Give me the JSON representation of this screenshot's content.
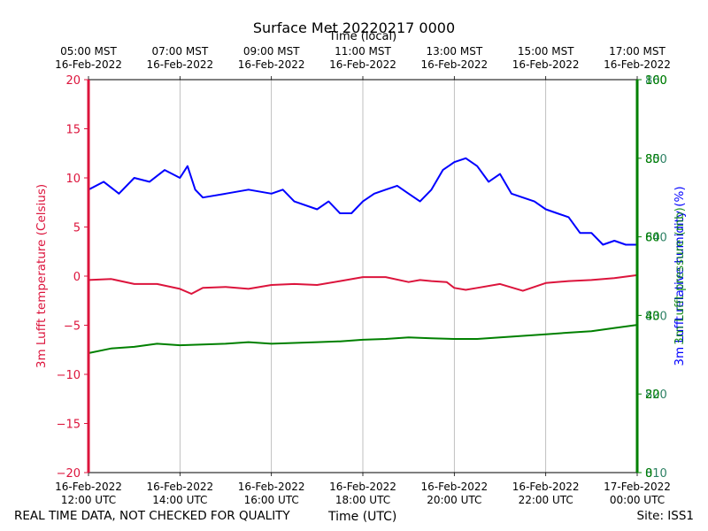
{
  "title": "Surface Met 20220217 0000",
  "footer": {
    "left": "REAL TIME DATA, NOT CHECKED FOR QUALITY",
    "right": "Site: ISS1"
  },
  "chart_data": {
    "type": "line",
    "title": "Surface Met 20220217 0000",
    "xlabel": "Time (UTC)",
    "top_xlabel": "Time (local)",
    "grid": "vertical",
    "x_range": [
      "2022-02-16 12:00 UTC",
      "2022-02-17 00:00 UTC"
    ],
    "bottom_ticks": [
      {
        "date": "16-Feb-2022",
        "time": "12:00 UTC"
      },
      {
        "date": "16-Feb-2022",
        "time": "14:00 UTC"
      },
      {
        "date": "16-Feb-2022",
        "time": "16:00 UTC"
      },
      {
        "date": "16-Feb-2022",
        "time": "18:00 UTC"
      },
      {
        "date": "16-Feb-2022",
        "time": "20:00 UTC"
      },
      {
        "date": "16-Feb-2022",
        "time": "22:00 UTC"
      },
      {
        "date": "17-Feb-2022",
        "time": "00:00 UTC"
      }
    ],
    "top_ticks": [
      {
        "time": "05:00 MST",
        "date": "16-Feb-2022"
      },
      {
        "time": "07:00 MST",
        "date": "16-Feb-2022"
      },
      {
        "time": "09:00 MST",
        "date": "16-Feb-2022"
      },
      {
        "time": "11:00 MST",
        "date": "16-Feb-2022"
      },
      {
        "time": "13:00 MST",
        "date": "16-Feb-2022"
      },
      {
        "time": "15:00 MST",
        "date": "16-Feb-2022"
      },
      {
        "time": "17:00 MST",
        "date": "16-Feb-2022"
      }
    ],
    "y_left": {
      "label": "3m Lufft temperature (Celsius)",
      "color": "#dc143c",
      "ylim": [
        -20,
        20
      ],
      "ticks": [
        "−20",
        "−15",
        "−10",
        "−5",
        "0",
        "5",
        "10",
        "15",
        "20"
      ]
    },
    "y_right": {
      "labels": [
        "3m Lufft relative humidity (%)",
        "3m Lufft pressure (mb)"
      ],
      "color_humidity": "#0000ff",
      "color_pressure": "#008000",
      "ylim_humidity": [
        0,
        100
      ],
      "ylim_pressure": [
        810,
        860
      ],
      "ticks": [
        {
          "a": "0",
          "b": "810"
        },
        {
          "a": "20",
          "b": "820"
        },
        {
          "a": "40",
          "b": "830"
        },
        {
          "a": "60",
          "b": "840"
        },
        {
          "a": "80",
          "b": "850"
        },
        {
          "a": "100",
          "b": "860"
        }
      ]
    },
    "series": [
      {
        "name": "3m Lufft temperature (Celsius)",
        "color": "#dc143c",
        "axis": "left",
        "x": [
          "12:00",
          "12:30",
          "13:00",
          "13:30",
          "14:00",
          "14:15",
          "14:30",
          "15:00",
          "15:30",
          "16:00",
          "16:30",
          "17:00",
          "17:30",
          "18:00",
          "18:30",
          "19:00",
          "19:15",
          "19:30",
          "19:50",
          "20:00",
          "20:15",
          "20:30",
          "21:00",
          "21:30",
          "22:00",
          "22:30",
          "23:00",
          "23:30",
          "24:00"
        ],
        "values": [
          -0.4,
          -0.3,
          -0.8,
          -0.8,
          -1.3,
          -1.8,
          -1.2,
          -1.1,
          -1.3,
          -0.9,
          -0.8,
          -0.9,
          -0.5,
          -0.1,
          -0.1,
          -0.6,
          -0.4,
          -0.5,
          -0.6,
          -1.2,
          -1.4,
          -1.2,
          -0.8,
          -1.5,
          -0.7,
          -0.5,
          -0.4,
          -0.2,
          0.1
        ]
      },
      {
        "name": "3m Lufft relative humidity (%)",
        "color": "#0000ff",
        "axis": "right-humidity",
        "x": [
          "12:00",
          "12:20",
          "12:40",
          "13:00",
          "13:20",
          "13:40",
          "14:00",
          "14:10",
          "14:20",
          "14:30",
          "15:00",
          "15:30",
          "16:00",
          "16:15",
          "16:30",
          "17:00",
          "17:15",
          "17:30",
          "17:45",
          "18:00",
          "18:15",
          "18:30",
          "18:45",
          "19:00",
          "19:15",
          "19:30",
          "19:45",
          "20:00",
          "20:15",
          "20:30",
          "20:45",
          "21:00",
          "21:15",
          "21:30",
          "21:45",
          "22:00",
          "22:15",
          "22:30",
          "22:45",
          "23:00",
          "23:15",
          "23:30",
          "23:45",
          "24:00"
        ],
        "values": [
          72,
          74,
          71,
          75,
          74,
          77,
          75,
          78,
          72,
          70,
          71,
          72,
          71,
          72,
          69,
          67,
          69,
          66,
          66,
          69,
          71,
          72,
          73,
          71,
          69,
          72,
          77,
          79,
          80,
          78,
          74,
          76,
          71,
          70,
          69,
          67,
          66,
          65,
          61,
          61,
          58,
          59,
          58,
          58
        ]
      },
      {
        "name": "3m Lufft pressure (mb)",
        "color": "#008000",
        "axis": "right-pressure",
        "x": [
          "12:00",
          "12:30",
          "13:00",
          "13:30",
          "14:00",
          "14:30",
          "15:00",
          "15:30",
          "16:00",
          "16:30",
          "17:00",
          "17:30",
          "18:00",
          "18:30",
          "19:00",
          "19:30",
          "20:00",
          "20:30",
          "21:00",
          "21:30",
          "22:00",
          "22:30",
          "23:00",
          "23:30",
          "24:00"
        ],
        "values": [
          825.2,
          825.8,
          826.0,
          826.4,
          826.2,
          826.3,
          826.4,
          826.6,
          826.4,
          826.5,
          826.6,
          826.7,
          826.9,
          827.0,
          827.2,
          827.1,
          827.0,
          827.0,
          827.2,
          827.4,
          827.6,
          827.8,
          828.0,
          828.4,
          828.8
        ]
      }
    ]
  }
}
